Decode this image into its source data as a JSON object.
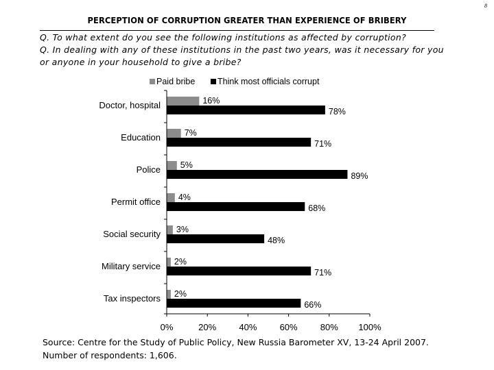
{
  "page_number": "8",
  "title": "PERCEPTION OF CORRUPTION GREATER THAN EXPERIENCE OF BRIBERY",
  "question_1": "Q. To what extent do you see the following institutions as affected by corruption?",
  "question_2": "Q. In dealing with any of these institutions in the past two years, was it necessary for you or anyone in your household to give a bribe?",
  "source_line_1": "Source: Centre for the Study of Public Policy, New Russia Barometer XV, 13-24 April 2007.",
  "source_line_2": "Number of respondents: 1,606.",
  "colors": {
    "paid_bribe": "#8c8c8c",
    "officials_corrupt": "#000000"
  },
  "chart_data": {
    "type": "bar",
    "orientation": "horizontal",
    "title": "",
    "xlabel": "",
    "ylabel": "",
    "xlim": [
      0,
      100
    ],
    "x_ticks": [
      "0%",
      "20%",
      "40%",
      "60%",
      "80%",
      "100%"
    ],
    "categories": [
      "Doctor, hospital",
      "Education",
      "Police",
      "Permit office",
      "Social security",
      "Military service",
      "Tax inspectors"
    ],
    "series": [
      {
        "name": "Paid bribe",
        "values": [
          16,
          7,
          5,
          4,
          3,
          2,
          2
        ],
        "labels": [
          "16%",
          "7%",
          "5%",
          "4%",
          "3%",
          "2%",
          "2%"
        ]
      },
      {
        "name": "Think most officials corrupt",
        "values": [
          78,
          71,
          89,
          68,
          48,
          71,
          66
        ],
        "labels": [
          "78%",
          "71%",
          "89%",
          "68%",
          "48%",
          "71%",
          "66%"
        ]
      }
    ],
    "legend_position": "top"
  }
}
